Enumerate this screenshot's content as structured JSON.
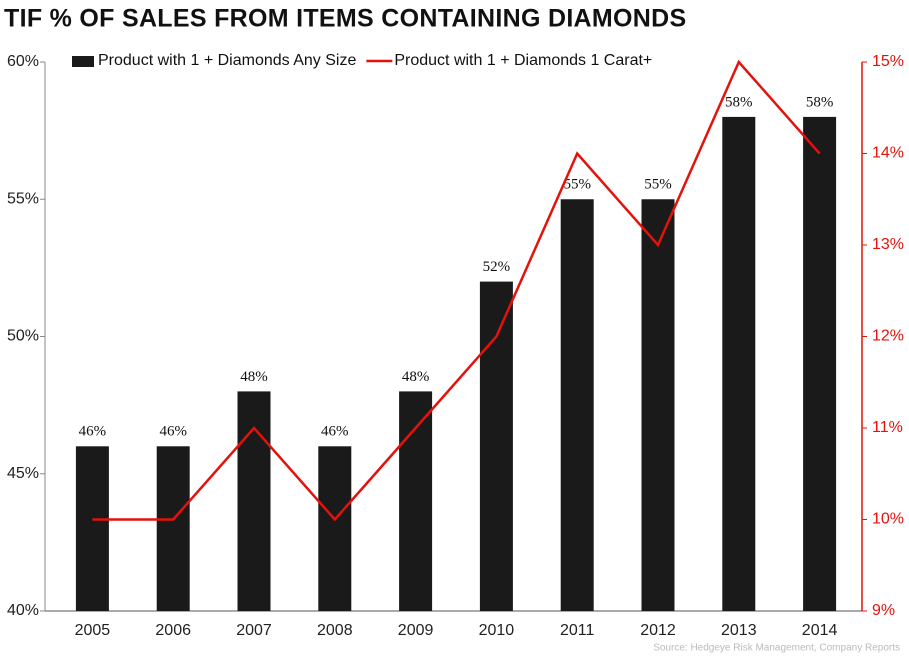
{
  "chart_data": {
    "type": "bar-line",
    "title": "TIF % OF SALES FROM ITEMS CONTAINING DIAMONDS",
    "source": "Source: Hedgeye Risk Management, Company Reports",
    "categories": [
      "2005",
      "2006",
      "2007",
      "2008",
      "2009",
      "2010",
      "2011",
      "2012",
      "2013",
      "2014"
    ],
    "series": [
      {
        "name": "Product with 1 + Diamonds Any Size",
        "type": "bar",
        "color": "#1a1a1a",
        "values": [
          46,
          46,
          48,
          46,
          48,
          52,
          55,
          55,
          58,
          58
        ],
        "value_labels": [
          "46%",
          "46%",
          "48%",
          "46%",
          "48%",
          "52%",
          "55%",
          "55%",
          "58%",
          "58%"
        ]
      },
      {
        "name": "Product with 1 + Diamonds 1 Carat+",
        "type": "line",
        "color": "#e3120b",
        "axis": "y2",
        "values": [
          10,
          10,
          11,
          10,
          11,
          12,
          14,
          13,
          15,
          14
        ]
      }
    ],
    "ylim": [
      40,
      60
    ],
    "yticks": [
      {
        "value": 40,
        "label": "40%"
      },
      {
        "value": 45,
        "label": "45%"
      },
      {
        "value": 50,
        "label": "50%"
      },
      {
        "value": 55,
        "label": "55%"
      },
      {
        "value": 60,
        "label": "60%"
      }
    ],
    "y2lim": [
      9,
      15
    ],
    "y2ticks": [
      {
        "value": 9,
        "label": "9%"
      },
      {
        "value": 10,
        "label": "10%"
      },
      {
        "value": 11,
        "label": "11%"
      },
      {
        "value": 12,
        "label": "12%"
      },
      {
        "value": 13,
        "label": "13%"
      },
      {
        "value": 14,
        "label": "14%"
      },
      {
        "value": 15,
        "label": "15%"
      }
    ]
  }
}
